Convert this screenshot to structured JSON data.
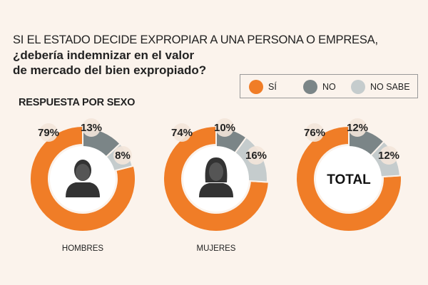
{
  "header": {
    "line1": "SI EL ESTADO DECIDE EXPROPIAR A UNA PERSONA O EMPRESA,",
    "line2": "¿debería indemnizar en el valor",
    "line3": "de mercado del bien expropiado?"
  },
  "subtitle": "RESPUESTA POR SEXO",
  "legend": [
    {
      "label": "SÍ",
      "color": "#f07d27"
    },
    {
      "label": "NO",
      "color": "#7b8587"
    },
    {
      "label": "NO SABE",
      "color": "#c5cccd"
    }
  ],
  "chart_data": [
    {
      "type": "pie",
      "name": "HOMBRES",
      "center_label": "",
      "icon": "man-icon",
      "categories": [
        "SÍ",
        "NO",
        "NO SABE"
      ],
      "values": [
        79,
        13,
        8
      ],
      "labels": [
        "79%",
        "13%",
        "8%"
      ]
    },
    {
      "type": "pie",
      "name": "MUJERES",
      "center_label": "",
      "icon": "woman-icon",
      "categories": [
        "SÍ",
        "NO",
        "NO SABE"
      ],
      "values": [
        74,
        10,
        16
      ],
      "labels": [
        "74%",
        "10%",
        "16%"
      ]
    },
    {
      "type": "pie",
      "name": "",
      "center_label": "TOTAL",
      "icon": "",
      "categories": [
        "SÍ",
        "NO",
        "NO SABE"
      ],
      "values": [
        76,
        12,
        12
      ],
      "labels": [
        "76%",
        "12%",
        "12%"
      ]
    }
  ]
}
